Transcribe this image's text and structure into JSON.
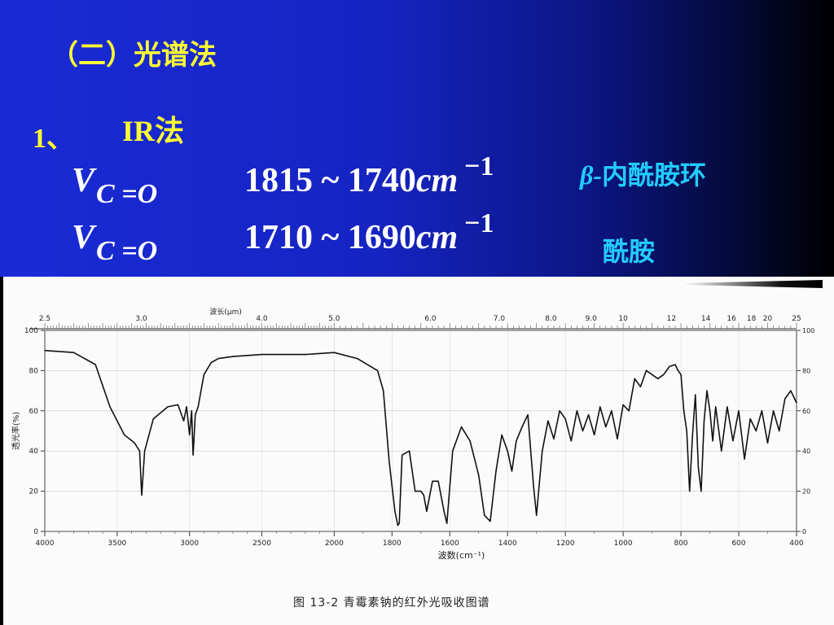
{
  "slide": {
    "title": "（二）光谱法",
    "item_number": "1、",
    "item_label": "IR法",
    "eq1": {
      "v": "V",
      "sub": "C =O",
      "range": "1815 ~ 1740",
      "unit": "cm",
      "sup": "−1",
      "note_beta": "β-",
      "note": "内酰胺环"
    },
    "eq2": {
      "v": "V",
      "sub": "C =O",
      "range": "1710 ~ 1690",
      "unit": "cm",
      "sup": "−1",
      "note": "酰胺"
    }
  },
  "chart_data": {
    "type": "line",
    "title": "",
    "xlabel": "波数(cm⁻¹)",
    "ylabel": "透光率(%)",
    "top_axis_label": "波长(μm)",
    "xlim": [
      4000,
      400
    ],
    "ylim": [
      0,
      100
    ],
    "x_ticks": [
      4000,
      3500,
      3000,
      2500,
      2000,
      1800,
      1600,
      1400,
      1200,
      1000,
      800,
      600,
      400
    ],
    "y_ticks": [
      0,
      20,
      40,
      60,
      80,
      100
    ],
    "top_ticks": [
      "2.5",
      "3.0",
      "4.0",
      "5.0",
      "6.0",
      "7.0",
      "8.0",
      "9.0",
      "10",
      "12",
      "14",
      "16",
      "18",
      "20",
      "25"
    ],
    "top_tick_positions_cm": [
      4000,
      3333,
      2500,
      2000,
      1667,
      1429,
      1250,
      1111,
      1000,
      833,
      714,
      625,
      556,
      500,
      400
    ],
    "series": [
      {
        "x": [
          4000,
          3800,
          3650,
          3550,
          3450,
          3380,
          3345,
          3330,
          3310,
          3250,
          3150,
          3080,
          3040,
          3020,
          3000,
          2985,
          2975,
          2960,
          2940,
          2900,
          2850,
          2800,
          2700,
          2500,
          2200,
          2000,
          1920,
          1850,
          1830,
          1810,
          1790,
          1780,
          1775,
          1765,
          1740,
          1720,
          1700,
          1690,
          1680,
          1660,
          1640,
          1620,
          1610,
          1590,
          1560,
          1530,
          1500,
          1480,
          1460,
          1440,
          1420,
          1400,
          1385,
          1370,
          1350,
          1330,
          1310,
          1300,
          1280,
          1260,
          1240,
          1220,
          1200,
          1180,
          1160,
          1140,
          1120,
          1100,
          1080,
          1060,
          1040,
          1020,
          1000,
          980,
          960,
          940,
          920,
          900,
          880,
          860,
          840,
          820,
          810,
          800,
          790,
          780,
          770,
          760,
          750,
          740,
          730,
          720,
          710,
          700,
          690,
          680,
          660,
          640,
          620,
          600,
          580,
          560,
          540,
          520,
          500,
          480,
          460,
          440,
          420,
          400
        ],
        "y": [
          90,
          89,
          83,
          62,
          48,
          44,
          40,
          18,
          40,
          56,
          62,
          63,
          55,
          62,
          48,
          60,
          38,
          58,
          62,
          78,
          84,
          86,
          87,
          88,
          88,
          89,
          86,
          80,
          70,
          35,
          10,
          3,
          4,
          38,
          40,
          20,
          20,
          18,
          10,
          25,
          25,
          10,
          4,
          40,
          52,
          45,
          28,
          8,
          5,
          30,
          48,
          40,
          30,
          45,
          52,
          58,
          22,
          8,
          40,
          55,
          46,
          60,
          56,
          45,
          60,
          50,
          58,
          48,
          62,
          52,
          60,
          46,
          63,
          60,
          76,
          72,
          80,
          78,
          76,
          78,
          82,
          83,
          80,
          78,
          60,
          50,
          20,
          48,
          68,
          32,
          20,
          55,
          70,
          60,
          45,
          62,
          40,
          62,
          45,
          60,
          36,
          56,
          50,
          60,
          44,
          60,
          50,
          66,
          70,
          64
        ]
      }
    ],
    "caption": "图 13-2    青霉素钠的红外光吸收图谱"
  },
  "colors": {
    "title_yellow": "#ffff33",
    "note_cyan": "#22ccff",
    "equation_white": "#ffffff"
  }
}
